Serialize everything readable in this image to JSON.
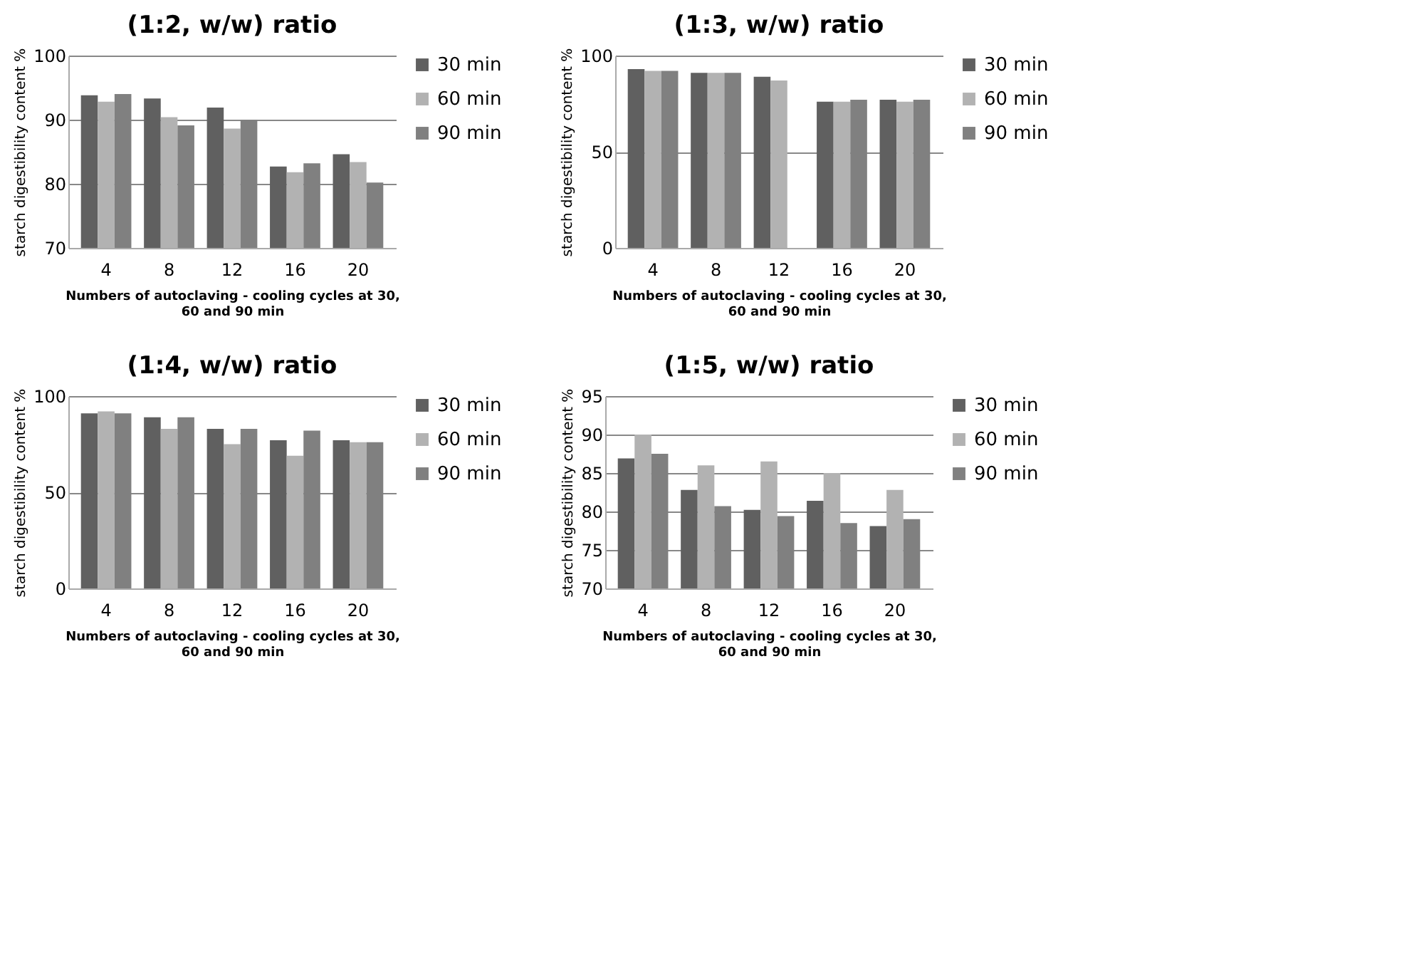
{
  "chart_data": [
    {
      "type": "bar",
      "title": "(1:2, w/w) ratio",
      "xlabel": "Numbers of autoclaving - cooling cycles at 30, 60 and 90 min",
      "ylabel": "starch digestibility content %",
      "categories": [
        "4",
        "8",
        "12",
        "16",
        "20"
      ],
      "ylim": [
        70,
        100
      ],
      "yticks": [
        70,
        80,
        90,
        100
      ],
      "grid": "y",
      "legend": "right",
      "series": [
        {
          "name": "30 min",
          "color": "#606060",
          "values": [
            93.8,
            93.3,
            91.9,
            82.7,
            84.6
          ]
        },
        {
          "name": "60 min",
          "color": "#b2b2b2",
          "values": [
            92.8,
            90.4,
            88.6,
            81.8,
            83.4
          ]
        },
        {
          "name": "90 min",
          "color": "#808080",
          "values": [
            94.0,
            89.1,
            90.0,
            83.2,
            80.2
          ]
        }
      ]
    },
    {
      "type": "bar",
      "title": "(1:3, w/w) ratio",
      "xlabel": "Numbers of autoclaving - cooling cycles at 30, 60 and 90 min",
      "ylabel": "starch digestibility content %",
      "categories": [
        "4",
        "8",
        "12",
        "16",
        "20"
      ],
      "ylim": [
        0,
        100
      ],
      "yticks": [
        0,
        50,
        100
      ],
      "grid": "y",
      "legend": "right",
      "series": [
        {
          "name": "30 min",
          "color": "#606060",
          "values": [
            93,
            91,
            89,
            76,
            77
          ]
        },
        {
          "name": "60 min",
          "color": "#b2b2b2",
          "values": [
            92,
            91,
            87,
            76,
            76
          ]
        },
        {
          "name": "90 min",
          "color": "#808080",
          "values": [
            92,
            91,
            null,
            77,
            77
          ]
        }
      ]
    },
    {
      "type": "bar",
      "title": "(1:4, w/w) ratio",
      "xlabel": "Numbers of autoclaving - cooling cycles at 30, 60 and 90 min",
      "ylabel": "starch digestibility content %",
      "categories": [
        "4",
        "8",
        "12",
        "16",
        "20"
      ],
      "ylim": [
        0,
        100
      ],
      "yticks": [
        0,
        50,
        100
      ],
      "grid": "y",
      "legend": "right",
      "series": [
        {
          "name": "30 min",
          "color": "#606060",
          "values": [
            91,
            89,
            83,
            77,
            77
          ]
        },
        {
          "name": "60 min",
          "color": "#b2b2b2",
          "values": [
            92,
            83,
            75,
            69,
            76
          ]
        },
        {
          "name": "90 min",
          "color": "#808080",
          "values": [
            91,
            89,
            83,
            82,
            76
          ]
        }
      ]
    },
    {
      "type": "bar",
      "title": "(1:5, w/w) ratio",
      "xlabel": "Numbers of autoclaving - cooling cycles at 30, 60 and 90 min",
      "ylabel": "starch digestibility content %",
      "categories": [
        "4",
        "8",
        "12",
        "16",
        "20"
      ],
      "ylim": [
        70,
        95
      ],
      "yticks": [
        70,
        75,
        80,
        85,
        90,
        95
      ],
      "grid": "y",
      "legend": "right",
      "series": [
        {
          "name": "30 min",
          "color": "#606060",
          "values": [
            86.9,
            82.8,
            80.2,
            81.4,
            78.1
          ]
        },
        {
          "name": "60 min",
          "color": "#b2b2b2",
          "values": [
            90.0,
            86.0,
            86.5,
            85.0,
            82.8
          ]
        },
        {
          "name": "90 min",
          "color": "#808080",
          "values": [
            87.5,
            80.7,
            79.4,
            78.5,
            79.0
          ]
        }
      ]
    }
  ]
}
